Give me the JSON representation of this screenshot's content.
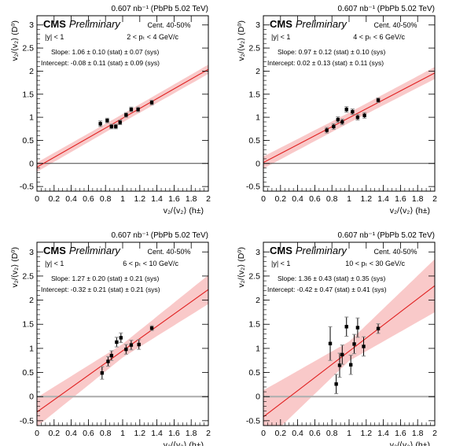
{
  "figure": {
    "lumi_text": "0.607 nb⁻¹ (PbPb 5.02 TeV)",
    "cms_label": "CMS",
    "preliminary_label": "Preliminary",
    "xlabel": "v₂/⟨v₂⟩ (h±)",
    "ylabel": "v₂/⟨v₂⟩ (D⁰)"
  },
  "chart_data": [
    {
      "type": "scatter",
      "centrality": "Cent. 40-50%",
      "eta": "|y| < 1",
      "pt_range": "2 < pₜ < 4 GeV/c",
      "slope_text": "Slope: 1.06 ± 0.10 (stat) ± 0.07 (sys)",
      "intercept_text": "Intercept: -0.08 ± 0.11 (stat) ± 0.09 (sys)",
      "slope": 1.06,
      "intercept": -0.08,
      "band_halfwidth": [
        0.09,
        0.1
      ],
      "xlim": [
        0,
        2
      ],
      "ylim": [
        -0.6,
        3.2
      ],
      "xticks": [
        0,
        0.2,
        0.4,
        0.6,
        0.8,
        1,
        1.2,
        1.4,
        1.6,
        1.8,
        2
      ],
      "yticks": [
        -0.5,
        0,
        0.5,
        1,
        1.5,
        2,
        2.5,
        3
      ],
      "x": [
        0.74,
        0.82,
        0.87,
        0.92,
        0.97,
        1.04,
        1.1,
        1.18,
        1.34
      ],
      "y": [
        0.86,
        0.93,
        0.8,
        0.8,
        0.89,
        1.05,
        1.17,
        1.17,
        1.32
      ],
      "err": [
        0.06,
        0.05,
        0.05,
        0.05,
        0.05,
        0.05,
        0.05,
        0.05,
        0.05
      ]
    },
    {
      "type": "scatter",
      "centrality": "Cent. 40-50%",
      "eta": "|y| < 1",
      "pt_range": "4 < pₜ < 6 GeV/c",
      "slope_text": "Slope: 0.97 ± 0.12 (stat) ± 0.10 (sys)",
      "intercept_text": "Intercept: 0.02 ± 0.13 (stat) ± 0.11 (sys)",
      "slope": 0.97,
      "intercept": 0.02,
      "band_halfwidth": [
        0.11,
        0.13
      ],
      "xlim": [
        0,
        2
      ],
      "ylim": [
        -0.6,
        3.2
      ],
      "xticks": [
        0,
        0.2,
        0.4,
        0.6,
        0.8,
        1,
        1.2,
        1.4,
        1.6,
        1.8,
        2
      ],
      "yticks": [
        -0.5,
        0,
        0.5,
        1,
        1.5,
        2,
        2.5,
        3
      ],
      "x": [
        0.74,
        0.82,
        0.87,
        0.92,
        0.97,
        1.04,
        1.1,
        1.18,
        1.34
      ],
      "y": [
        0.72,
        0.8,
        0.95,
        0.9,
        1.17,
        1.12,
        1.0,
        1.04,
        1.37
      ],
      "err": [
        0.06,
        0.06,
        0.06,
        0.06,
        0.06,
        0.06,
        0.06,
        0.06,
        0.05
      ]
    },
    {
      "type": "scatter",
      "centrality": "Cent. 40-50%",
      "eta": "|y| < 1",
      "pt_range": "6 < pₜ < 10 GeV/c",
      "slope_text": "Slope: 1.27 ± 0.20 (stat) ± 0.21 (sys)",
      "intercept_text": "Intercept: -0.32 ± 0.21 (stat) ± 0.21 (sys)",
      "slope": 1.27,
      "intercept": -0.32,
      "band_halfwidth": [
        0.14,
        0.3
      ],
      "xlim": [
        0,
        2
      ],
      "ylim": [
        -0.6,
        3.2
      ],
      "xticks": [
        0,
        0.2,
        0.4,
        0.6,
        0.8,
        1,
        1.2,
        1.4,
        1.6,
        1.8,
        2
      ],
      "yticks": [
        -0.5,
        0,
        0.5,
        1,
        1.5,
        2,
        2.5,
        3
      ],
      "x": [
        0.76,
        0.83,
        0.87,
        0.93,
        0.98,
        1.04,
        1.1,
        1.19,
        1.34
      ],
      "y": [
        0.49,
        0.73,
        0.85,
        1.13,
        1.22,
        0.98,
        1.07,
        1.08,
        1.42
      ],
      "err": [
        0.13,
        0.1,
        0.1,
        0.1,
        0.1,
        0.1,
        0.1,
        0.1,
        0.05
      ]
    },
    {
      "type": "scatter",
      "centrality": "Cent. 40-50%",
      "eta": "|y| < 1",
      "pt_range": "10 < pₜ < 30 GeV/c",
      "slope_text": "Slope: 1.36 ± 0.43 (stat) ± 0.35 (sys)",
      "intercept_text": "Intercept: -0.42 ± 0.47 (stat) ± 0.41 (sys)",
      "slope": 1.36,
      "intercept": -0.42,
      "band_halfwidth": [
        0.2,
        0.55
      ],
      "xlim": [
        0,
        2
      ],
      "ylim": [
        -0.6,
        3.2
      ],
      "xticks": [
        0,
        0.2,
        0.4,
        0.6,
        0.8,
        1,
        1.2,
        1.4,
        1.6,
        1.8,
        2
      ],
      "yticks": [
        -0.5,
        0,
        0.5,
        1,
        1.5,
        2,
        2.5,
        3
      ],
      "x": [
        0.78,
        0.85,
        0.89,
        0.92,
        0.97,
        1.02,
        1.06,
        1.1,
        1.17,
        1.34
      ],
      "y": [
        1.1,
        0.26,
        0.65,
        0.87,
        1.45,
        0.66,
        1.09,
        1.43,
        1.04,
        1.41
      ],
      "err": [
        0.35,
        0.2,
        0.25,
        0.2,
        0.2,
        0.2,
        0.2,
        0.2,
        0.2,
        0.1
      ]
    }
  ]
}
